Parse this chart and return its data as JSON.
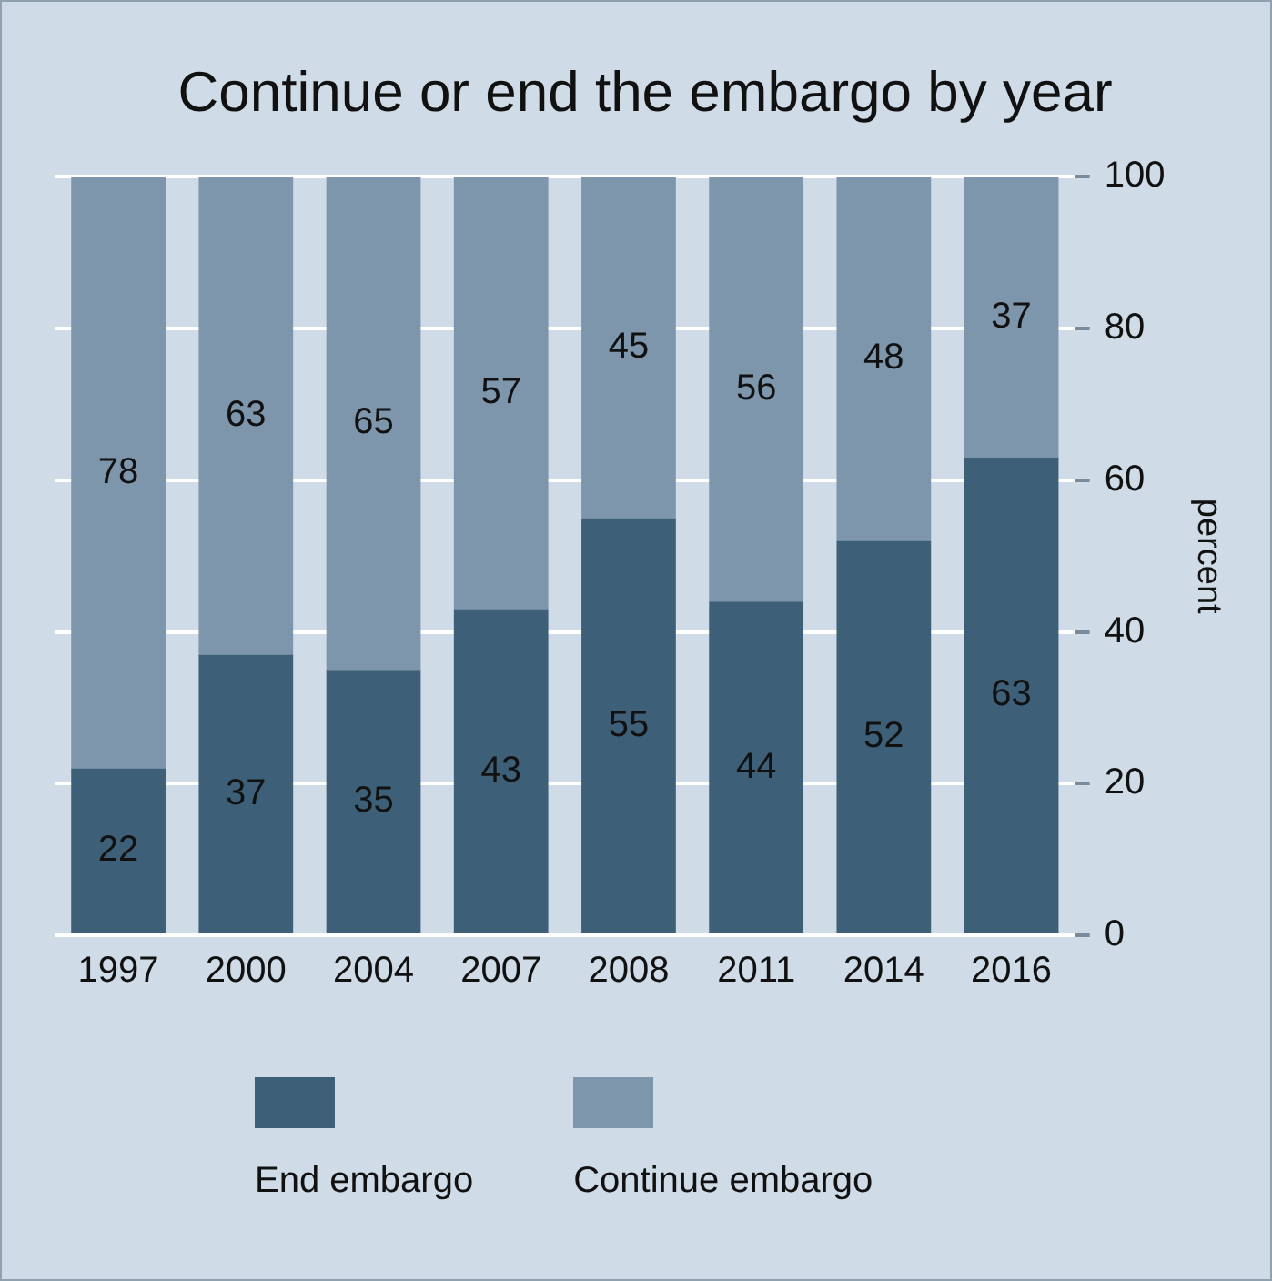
{
  "chart_data": {
    "type": "bar",
    "title": "Continue or end the embargo by year",
    "ylabel": "percent",
    "categories": [
      "1997",
      "2000",
      "2004",
      "2007",
      "2008",
      "2011",
      "2014",
      "2016"
    ],
    "stacked": true,
    "series": [
      {
        "name": "End embargo",
        "color": "#3e5f78",
        "values": [
          22,
          37,
          35,
          43,
          55,
          44,
          52,
          63
        ]
      },
      {
        "name": "Continue embargo",
        "color": "#7d96ac",
        "values": [
          78,
          63,
          65,
          57,
          45,
          56,
          48,
          37
        ]
      }
    ],
    "ylim": [
      0,
      100
    ],
    "yticks": [
      0,
      20,
      40,
      60,
      80,
      100
    ],
    "grid": "y",
    "legend": "bottom",
    "data_labels": true
  }
}
